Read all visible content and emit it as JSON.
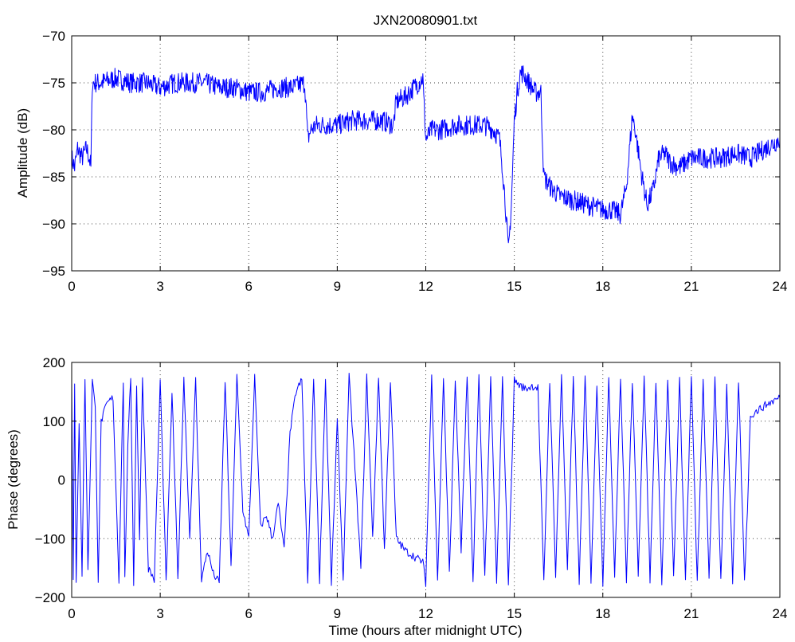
{
  "chart_data": [
    {
      "type": "line",
      "title": "JXN20080901.txt",
      "xlabel": "",
      "ylabel": "Amplitude (dB)",
      "xlim": [
        0,
        24
      ],
      "ylim": [
        -95,
        -70
      ],
      "xticks": [
        "0",
        "3",
        "6",
        "9",
        "12",
        "15",
        "18",
        "21",
        "24"
      ],
      "yticks": [
        "-70",
        "-75",
        "-80",
        "-85",
        "-90",
        "-95"
      ],
      "grid": true,
      "color": "#0000ff",
      "series": [
        {
          "x": [
            0,
            0.1,
            0.2,
            0.35,
            0.5,
            0.6,
            0.65,
            0.7,
            1,
            1.5,
            2,
            2.5,
            3,
            3.5,
            4,
            4.5,
            5,
            5.5,
            6,
            6.5,
            7,
            7.5,
            7.9,
            8.0,
            8.1,
            8.3,
            8.6,
            9,
            9.5,
            10,
            10.5,
            10.9,
            11.0,
            11.3,
            11.6,
            11.9,
            12.0,
            12.2,
            12.5,
            13,
            13.5,
            14,
            14.3,
            14.5,
            14.6,
            14.7,
            14.8,
            14.9,
            15.0,
            15.1,
            15.2,
            15.3,
            15.5,
            15.7,
            15.9,
            16.0,
            16.2,
            16.5,
            17,
            17.5,
            18,
            18.3,
            18.6,
            18.8,
            19.0,
            19.1,
            19.3,
            19.5,
            19.7,
            19.9,
            20.1,
            20.3,
            20.6,
            21,
            21.5,
            22,
            22.5,
            23,
            23.5,
            24
          ],
          "values": [
            -83,
            -84,
            -82,
            -83,
            -82,
            -83,
            -84,
            -75,
            -75,
            -74.5,
            -75,
            -75,
            -75.5,
            -75,
            -75,
            -75,
            -75.5,
            -75.5,
            -76,
            -76,
            -75.5,
            -75.5,
            -75,
            -81,
            -80,
            -79.5,
            -79.5,
            -79.5,
            -79,
            -79,
            -79,
            -79.5,
            -77,
            -76.5,
            -75.5,
            -74.5,
            -81,
            -80,
            -80,
            -79.5,
            -79.5,
            -79.5,
            -80,
            -81,
            -84,
            -88,
            -93,
            -88,
            -79,
            -76,
            -74,
            -74,
            -75,
            -76,
            -76,
            -85,
            -86,
            -87,
            -87.5,
            -88,
            -88.5,
            -88.5,
            -89,
            -86,
            -78.5,
            -80,
            -84.5,
            -88,
            -86.5,
            -83,
            -82.5,
            -83.5,
            -84,
            -83,
            -83,
            -83,
            -82.5,
            -83,
            -82,
            -81
          ]
        }
      ]
    },
    {
      "type": "line",
      "title": "",
      "xlabel": "Time (hours after midnight UTC)",
      "ylabel": "Phase (degrees)",
      "xlim": [
        0,
        24
      ],
      "ylim": [
        -200,
        200
      ],
      "xticks": [
        "0",
        "3",
        "6",
        "9",
        "12",
        "15",
        "18",
        "21",
        "24"
      ],
      "yticks": [
        "200",
        "100",
        "0",
        "-100",
        "-200"
      ],
      "grid": true,
      "color": "#0000ff",
      "series": [
        {
          "x": [
            0,
            0.05,
            0.1,
            0.15,
            0.25,
            0.35,
            0.45,
            0.55,
            0.7,
            0.8,
            0.9,
            1.0,
            1.2,
            1.4,
            1.6,
            1.75,
            1.8,
            1.9,
            2.0,
            2.1,
            2.2,
            2.3,
            2.4,
            2.6,
            2.8,
            3.0,
            3.2,
            3.4,
            3.6,
            3.8,
            4.0,
            4.2,
            4.4,
            4.6,
            4.8,
            5.0,
            5.2,
            5.4,
            5.6,
            5.8,
            6.0,
            6.2,
            6.4,
            6.6,
            6.8,
            7.0,
            7.2,
            7.4,
            7.6,
            7.8,
            8.0,
            8.2,
            8.4,
            8.6,
            8.8,
            9.0,
            9.2,
            9.4,
            9.6,
            9.8,
            10.0,
            10.2,
            10.4,
            10.6,
            10.8,
            11.0,
            11.3,
            11.6,
            11.9,
            12.0,
            12.2,
            12.4,
            12.6,
            12.8,
            13.0,
            13.2,
            13.4,
            13.6,
            13.8,
            14.0,
            14.2,
            14.4,
            14.6,
            14.8,
            15.0,
            15.1,
            15.2,
            15.4,
            15.6,
            15.8,
            16.0,
            16.2,
            16.4,
            16.6,
            16.8,
            17.0,
            17.2,
            17.4,
            17.6,
            17.8,
            18.0,
            18.2,
            18.4,
            18.6,
            18.8,
            19.0,
            19.2,
            19.4,
            19.6,
            19.8,
            20.0,
            20.2,
            20.4,
            20.6,
            20.8,
            21.0,
            21.2,
            21.4,
            21.6,
            21.8,
            22.0,
            22.2,
            22.4,
            22.6,
            22.8,
            22.9,
            23.0,
            23.3,
            23.6,
            24.0
          ],
          "values": [
            170,
            -170,
            160,
            -170,
            100,
            -160,
            170,
            -150,
            170,
            120,
            -170,
            100,
            130,
            140,
            -170,
            170,
            -170,
            50,
            175,
            -175,
            160,
            -100,
            175,
            -150,
            -170,
            170,
            -175,
            150,
            -170,
            175,
            -100,
            170,
            -170,
            -120,
            -160,
            -175,
            170,
            -150,
            175,
            -50,
            -100,
            175,
            -80,
            -60,
            -100,
            -40,
            -120,
            80,
            150,
            170,
            -175,
            175,
            -170,
            170,
            -175,
            100,
            -170,
            175,
            20,
            -150,
            175,
            -100,
            175,
            -120,
            170,
            -100,
            -120,
            -130,
            -140,
            -175,
            175,
            -170,
            175,
            -160,
            170,
            -120,
            175,
            -175,
            175,
            -165,
            170,
            -175,
            170,
            -175,
            170,
            165,
            160,
            155,
            160,
            157,
            -175,
            170,
            -160,
            175,
            -150,
            170,
            -175,
            175,
            -170,
            160,
            -175,
            170,
            -160,
            175,
            -170,
            170,
            -160,
            175,
            -170,
            170,
            -175,
            175,
            -165,
            170,
            -170,
            175,
            -175,
            165,
            -170,
            170,
            -170,
            160,
            -175,
            170,
            -170,
            -50,
            110,
            120,
            130,
            140
          ]
        }
      ]
    }
  ]
}
